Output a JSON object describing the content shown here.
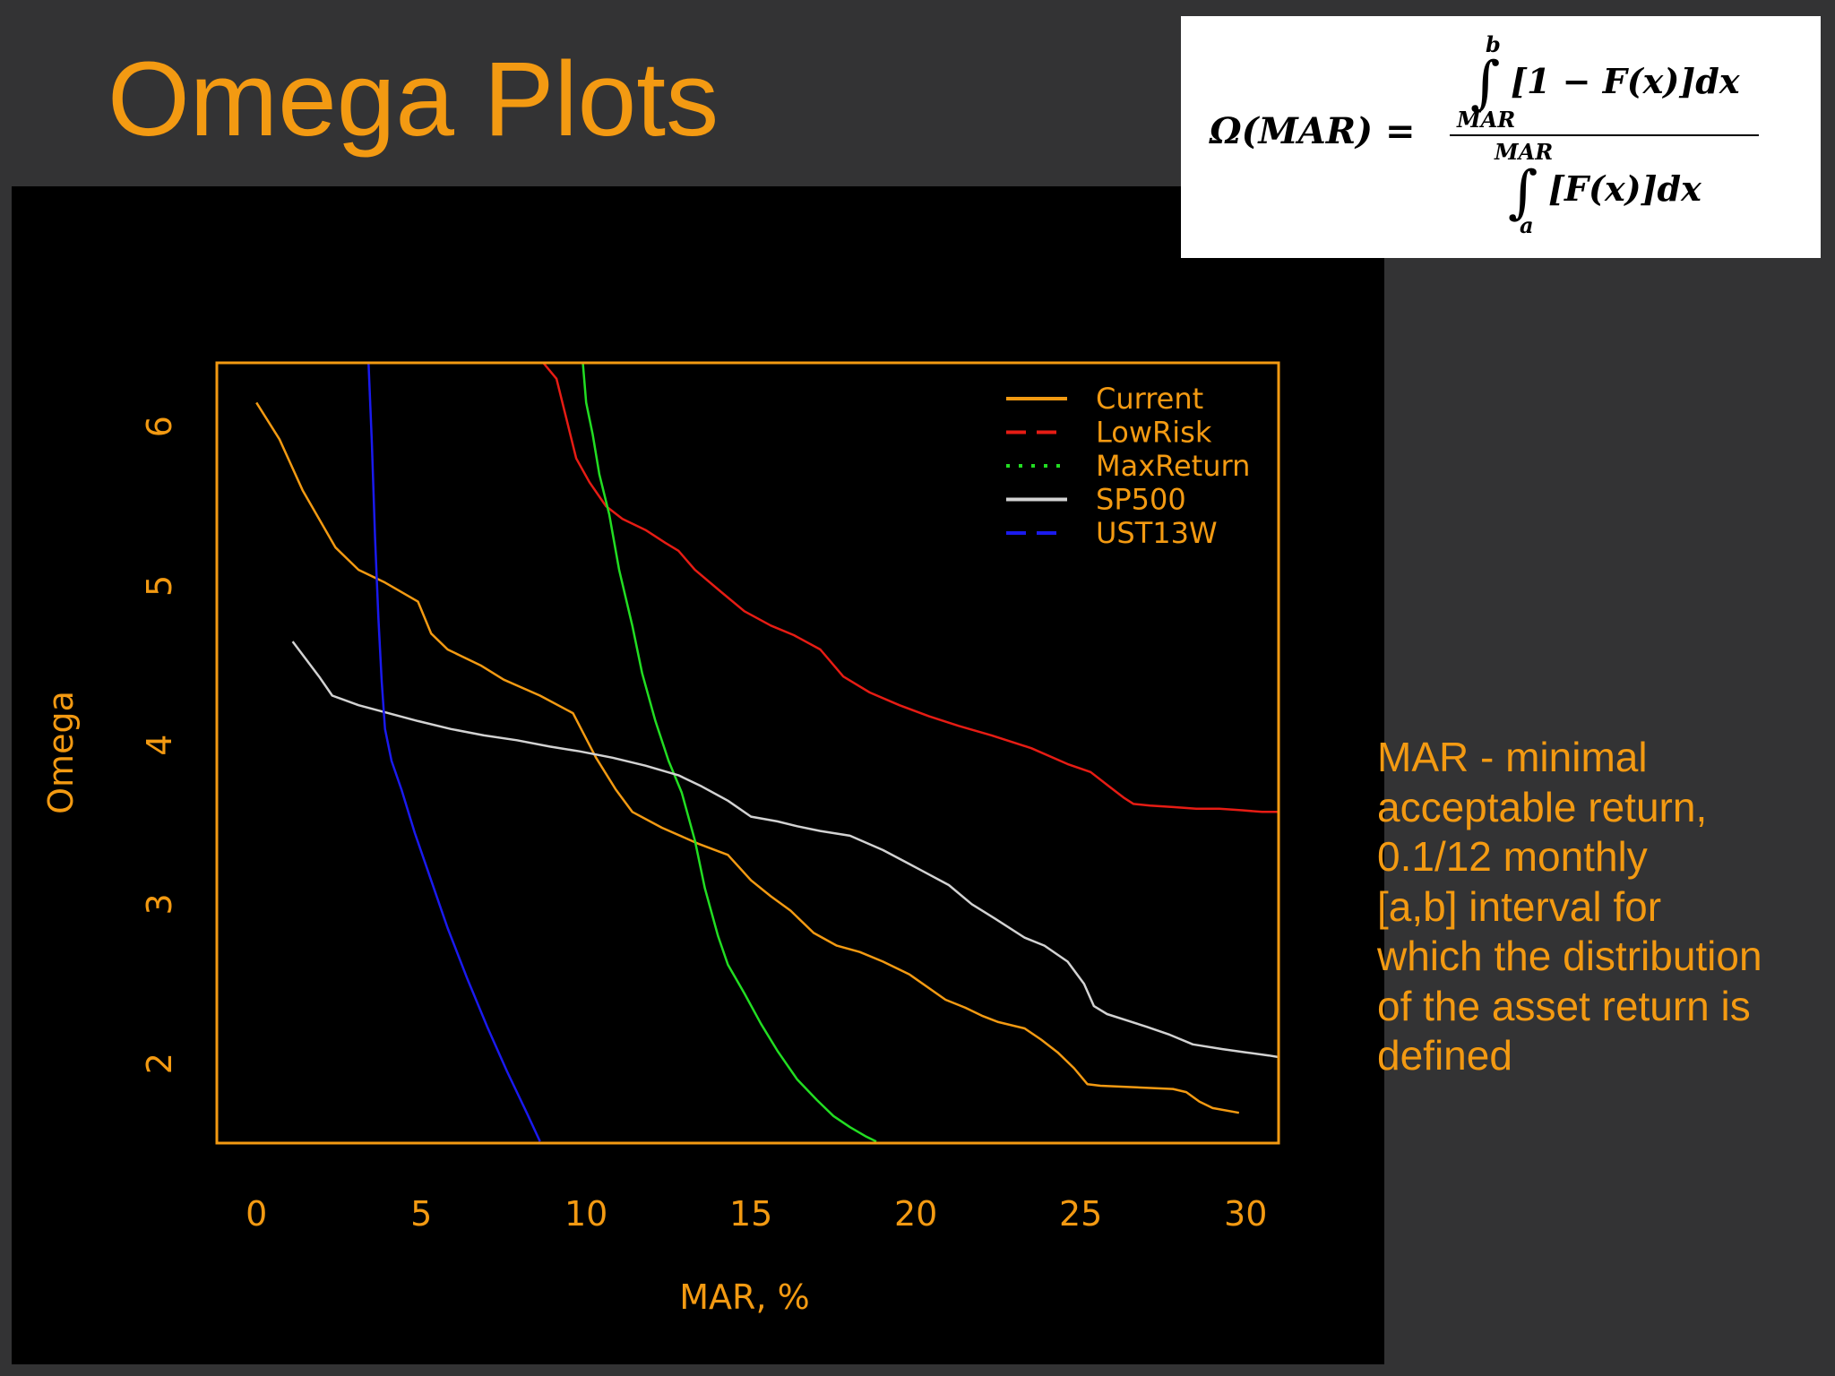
{
  "slide": {
    "title": "Omega Plots"
  },
  "formula": {
    "lhs": "Ω(MAR) =",
    "upper_limit": "b",
    "numerator_lower_limit": "MAR",
    "numerator_body": "[1 − F(x)]dx",
    "denominator_upper_limit": "MAR",
    "denominator_body": "[F(x)]dx",
    "lower_limit": "a"
  },
  "note": {
    "lines": [
      "MAR - minimal",
      "acceptable return,",
      "0.1/12 monthly",
      "[a,b] interval for",
      "which the distribution",
      "of the asset return is",
      "defined"
    ]
  },
  "colors": {
    "accent": "#f39a12",
    "slide_bg": "#333334",
    "plot_bg": "#000000"
  },
  "chart_data": {
    "type": "line",
    "xlabel": "MAR, %",
    "ylabel": "Omega",
    "xlim": [
      -1.2,
      31
    ],
    "ylim": [
      1.5,
      6.4
    ],
    "xticks": [
      0,
      5,
      10,
      15,
      20,
      25,
      30
    ],
    "yticks": [
      2,
      3,
      4,
      5,
      6
    ],
    "grid": false,
    "legend_position": "top-right",
    "series": [
      {
        "name": "Current",
        "color": "#f39a12",
        "dash": "solid",
        "x": [
          0,
          0.7,
          1.4,
          2.4,
          3.1,
          3.9,
          4.9,
          5.3,
          5.8,
          6.2,
          6.8,
          7.5,
          8.6,
          9.6,
          10.3,
          10.9,
          11.4,
          12.3,
          13.4,
          14.3,
          15.0,
          15.6,
          16.2,
          16.9,
          17.6,
          18.3,
          19.0,
          19.8,
          20.9,
          21.5,
          22.0,
          22.5,
          23.3,
          23.8,
          24.3,
          24.8,
          25.2,
          25.6,
          27.8,
          28.2,
          28.6,
          29.0,
          29.8
        ],
        "y": [
          6.15,
          5.92,
          5.6,
          5.24,
          5.1,
          5.02,
          4.9,
          4.7,
          4.6,
          4.56,
          4.5,
          4.41,
          4.31,
          4.2,
          3.92,
          3.72,
          3.58,
          3.48,
          3.38,
          3.31,
          3.15,
          3.05,
          2.96,
          2.82,
          2.74,
          2.7,
          2.64,
          2.56,
          2.4,
          2.35,
          2.3,
          2.26,
          2.22,
          2.15,
          2.07,
          1.97,
          1.87,
          1.86,
          1.84,
          1.82,
          1.76,
          1.72,
          1.69
        ]
      },
      {
        "name": "LowRisk",
        "color": "#e61c14",
        "dash": "dashed",
        "x": [
          8.7,
          9.1,
          9.4,
          9.7,
          10.1,
          10.6,
          11.1,
          11.8,
          12.4,
          12.8,
          13.3,
          14.1,
          14.8,
          15.6,
          16.3,
          17.1,
          17.8,
          18.6,
          19.5,
          20.4,
          21.3,
          22.3,
          23.5,
          24.6,
          25.3,
          25.8,
          26.3,
          26.6,
          27.1,
          27.8,
          28.5,
          29.2,
          29.9,
          30.5,
          31
        ],
        "y": [
          6.4,
          6.3,
          6.05,
          5.8,
          5.65,
          5.5,
          5.42,
          5.35,
          5.27,
          5.22,
          5.1,
          4.96,
          4.84,
          4.75,
          4.69,
          4.6,
          4.43,
          4.33,
          4.25,
          4.18,
          4.12,
          4.06,
          3.98,
          3.88,
          3.83,
          3.75,
          3.67,
          3.63,
          3.62,
          3.61,
          3.6,
          3.6,
          3.59,
          3.58,
          3.58
        ]
      },
      {
        "name": "MaxReturn",
        "color": "#22dd22",
        "dash": "dotted",
        "x": [
          9.9,
          10.0,
          10.2,
          10.4,
          10.7,
          11.0,
          11.4,
          11.7,
          12.1,
          12.5,
          12.9,
          13.3,
          13.6,
          14.0,
          14.3,
          14.8,
          15.3,
          15.8,
          16.4,
          17.0,
          17.5,
          18.0,
          18.5,
          18.8
        ],
        "y": [
          6.4,
          6.15,
          5.95,
          5.7,
          5.45,
          5.1,
          4.75,
          4.45,
          4.15,
          3.9,
          3.7,
          3.4,
          3.1,
          2.8,
          2.62,
          2.44,
          2.25,
          2.08,
          1.9,
          1.77,
          1.67,
          1.6,
          1.54,
          1.51
        ]
      },
      {
        "name": "SP500",
        "color": "#d2d2d2",
        "dash": "solid",
        "x": [
          1.1,
          1.9,
          2.3,
          3.1,
          4.0,
          4.9,
          5.9,
          6.9,
          7.9,
          8.9,
          9.8,
          10.8,
          11.8,
          12.8,
          13.5,
          14.3,
          15.0,
          15.8,
          16.4,
          17.1,
          18.0,
          19.0,
          20.1,
          21.0,
          21.7,
          22.4,
          23.3,
          23.9,
          24.6,
          25.1,
          25.4,
          25.8,
          26.4,
          27.0,
          27.7,
          28.4,
          29.3,
          30.0,
          30.7,
          31
        ],
        "y": [
          4.65,
          4.43,
          4.31,
          4.25,
          4.2,
          4.15,
          4.1,
          4.06,
          4.03,
          3.99,
          3.96,
          3.92,
          3.87,
          3.81,
          3.74,
          3.65,
          3.55,
          3.52,
          3.49,
          3.46,
          3.43,
          3.34,
          3.22,
          3.12,
          3.0,
          2.91,
          2.79,
          2.74,
          2.64,
          2.5,
          2.36,
          2.31,
          2.27,
          2.23,
          2.18,
          2.12,
          2.09,
          2.07,
          2.05,
          2.04
        ]
      },
      {
        "name": "UST13W",
        "color": "#1a1aee",
        "dash": "dashed",
        "x": [
          3.4,
          3.5,
          3.6,
          3.7,
          3.8,
          3.9,
          4.1,
          4.4,
          4.8,
          5.3,
          5.8,
          6.4,
          7.0,
          7.6,
          8.2,
          8.6
        ],
        "y": [
          6.4,
          5.9,
          5.3,
          4.8,
          4.4,
          4.1,
          3.9,
          3.72,
          3.45,
          3.15,
          2.85,
          2.53,
          2.23,
          1.95,
          1.69,
          1.51
        ]
      }
    ]
  }
}
